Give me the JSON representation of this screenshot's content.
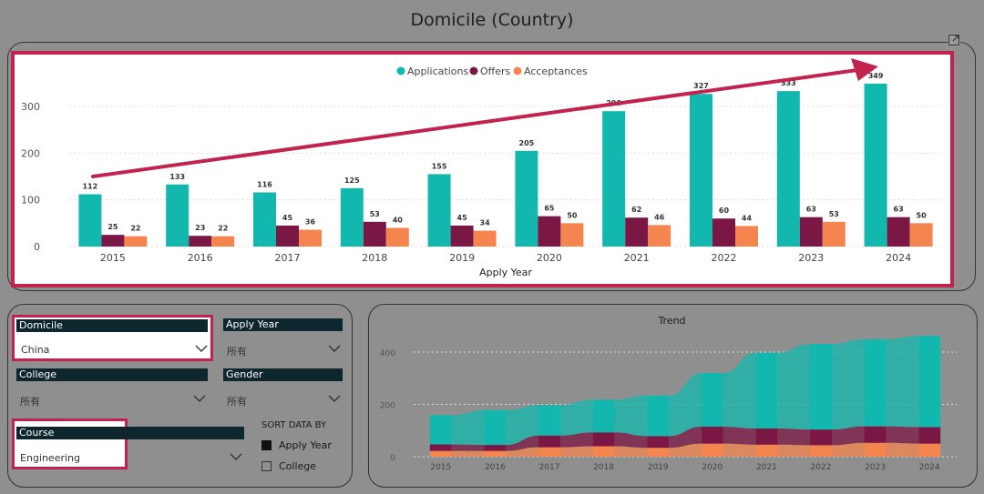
{
  "page_title": "Domicile (Country)",
  "icons": {
    "expand": "expand-icon",
    "chevron": "chevron-down-icon"
  },
  "colors": {
    "applications": "#12b8ad",
    "offers": "#7b1744",
    "acceptances": "#f5854f",
    "highlight": "#c2234e",
    "slicer_header": "#0e262e"
  },
  "chart_data": [
    {
      "type": "bar",
      "title": "",
      "xlabel": "Apply Year",
      "ylabel": "",
      "ylim": [
        0,
        380
      ],
      "yticks": [
        0,
        100,
        200,
        300
      ],
      "grid": true,
      "legend": "top-center",
      "categories": [
        "2015",
        "2016",
        "2017",
        "2018",
        "2019",
        "2020",
        "2021",
        "2022",
        "2023",
        "2024"
      ],
      "series": [
        {
          "name": "Applications",
          "values": [
            112,
            133,
            116,
            125,
            155,
            205,
            290,
            327,
            333,
            349
          ]
        },
        {
          "name": "Offers",
          "values": [
            25,
            23,
            45,
            53,
            45,
            65,
            62,
            60,
            63,
            63
          ]
        },
        {
          "name": "Acceptances",
          "values": [
            22,
            22,
            36,
            40,
            34,
            50,
            46,
            44,
            53,
            50
          ]
        }
      ]
    },
    {
      "type": "area",
      "title": "Trend",
      "xlabel": "",
      "ylabel": "",
      "ylim": [
        0,
        480
      ],
      "yticks": [
        0,
        200,
        400
      ],
      "grid": true,
      "legend": "none",
      "categories": [
        "2015",
        "2016",
        "2017",
        "2018",
        "2019",
        "2020",
        "2021",
        "2022",
        "2023",
        "2024"
      ],
      "series": [
        {
          "name": "Applications",
          "values": [
            112,
            133,
            116,
            125,
            155,
            205,
            290,
            327,
            333,
            349
          ]
        },
        {
          "name": "Offers",
          "values": [
            25,
            23,
            45,
            53,
            45,
            65,
            62,
            60,
            63,
            63
          ]
        },
        {
          "name": "Acceptances",
          "values": [
            22,
            22,
            36,
            40,
            34,
            50,
            46,
            44,
            53,
            50
          ]
        }
      ]
    }
  ],
  "slicers": {
    "domicile": {
      "label": "Domicile",
      "value": "China"
    },
    "apply_year": {
      "label": "Apply Year",
      "value": "所有"
    },
    "college": {
      "label": "College",
      "value": "所有"
    },
    "gender": {
      "label": "Gender",
      "value": "所有"
    },
    "course": {
      "label": "Course",
      "value": "Engineering"
    }
  },
  "sort": {
    "label": "SORT DATA BY",
    "options": [
      {
        "label": "Apply Year",
        "selected": true
      },
      {
        "label": "College",
        "selected": false
      }
    ]
  }
}
